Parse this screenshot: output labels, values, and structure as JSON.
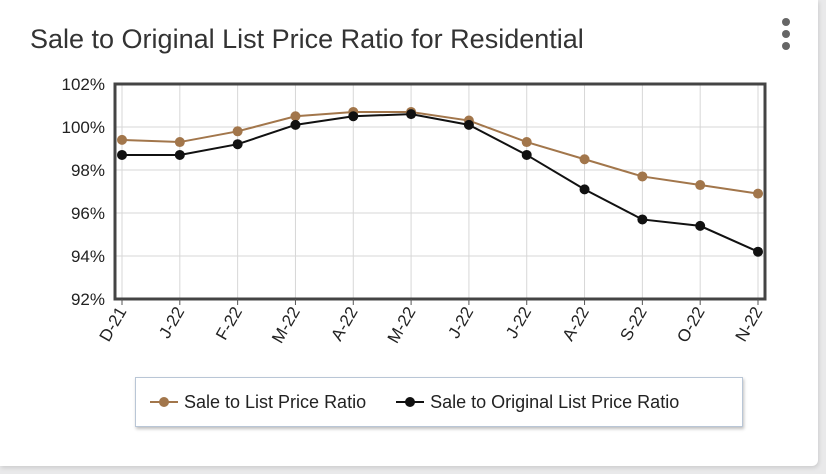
{
  "title": "Sale to Original List Price Ratio for Residential",
  "colors": {
    "sale_to_list": "#a2764b",
    "sale_to_original": "#111111",
    "grid": "#d7d7d7",
    "frame": "#444444"
  },
  "menu_icon": "vertical-ellipsis-icon",
  "chart_data": {
    "type": "line",
    "title": "Sale to Original List Price Ratio for Residential",
    "xlabel": "",
    "ylabel": "",
    "categories": [
      "D-21",
      "J-22",
      "F-22",
      "M-22",
      "A-22",
      "M-22",
      "J-22",
      "J-22",
      "A-22",
      "S-22",
      "O-22",
      "N-22"
    ],
    "ylim": [
      92,
      102
    ],
    "yticks": [
      92,
      94,
      96,
      98,
      100,
      102
    ],
    "ytick_labels": [
      "92%",
      "94%",
      "96%",
      "98%",
      "100%",
      "102%"
    ],
    "grid": true,
    "legend_position": "bottom",
    "series": [
      {
        "name": "Sale to List Price Ratio",
        "color": "#a2764b",
        "values": [
          99.4,
          99.3,
          99.8,
          100.5,
          100.7,
          100.7,
          100.3,
          99.3,
          98.5,
          97.7,
          97.3,
          96.9
        ]
      },
      {
        "name": "Sale to Original List Price Ratio",
        "color": "#111111",
        "values": [
          98.7,
          98.7,
          99.2,
          100.1,
          100.5,
          100.6,
          100.1,
          98.7,
          97.1,
          95.7,
          95.4,
          94.2
        ]
      }
    ]
  }
}
